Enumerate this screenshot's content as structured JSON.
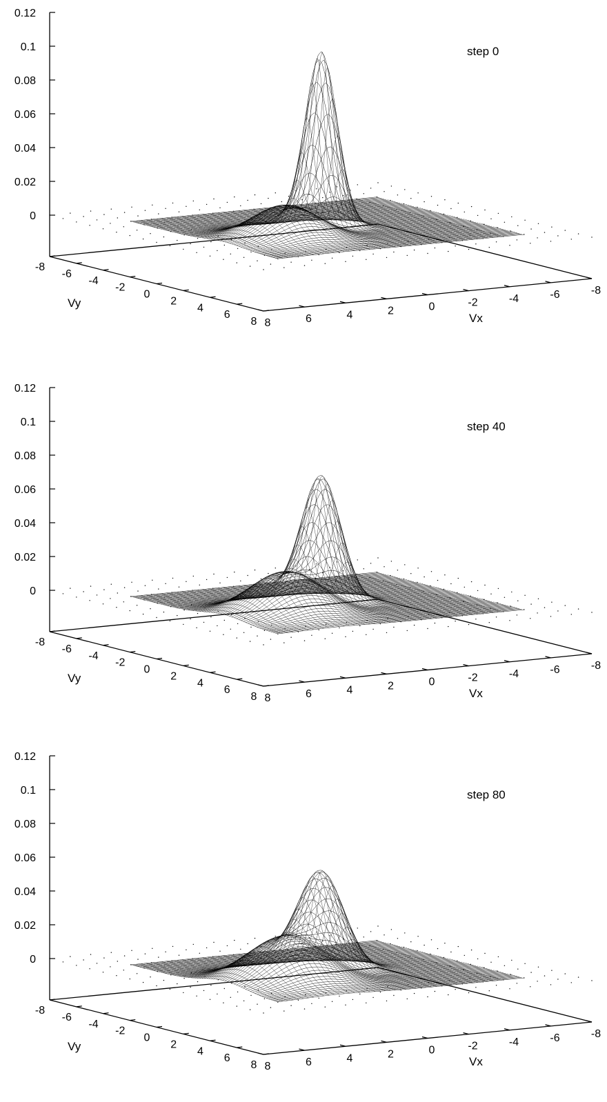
{
  "chart_data": [
    {
      "type": "surface",
      "label": "step 0",
      "xlabel": "Vx",
      "ylabel": "Vy",
      "zlim": [
        0,
        0.12
      ],
      "xlim": [
        -8,
        8
      ],
      "ylim": [
        -8,
        8
      ],
      "z_ticks": [
        "0",
        "0.02",
        "0.04",
        "0.06",
        "0.08",
        "0.1",
        "0.12"
      ],
      "vx_ticks": [
        "8",
        "6",
        "4",
        "2",
        "0",
        "-2",
        "-4",
        "-6",
        "-8"
      ],
      "vy_ticks": [
        "-8",
        "-6",
        "-4",
        "-2",
        "0",
        "2",
        "4",
        "6",
        "8"
      ],
      "main_peak": {
        "vx": 0.3,
        "vy": 0.5,
        "height": 0.103,
        "sigma_vx": 0.7,
        "sigma_vy": 0.55
      },
      "secondary_bump": {
        "vx": 3.0,
        "vy": 2.0,
        "height": 0.02,
        "sigma": 1.4
      }
    },
    {
      "type": "surface",
      "label": "step 40",
      "xlabel": "Vx",
      "ylabel": "Vy",
      "zlim": [
        0,
        0.12
      ],
      "xlim": [
        -8,
        8
      ],
      "ylim": [
        -8,
        8
      ],
      "z_ticks": [
        "0",
        "0.02",
        "0.04",
        "0.06",
        "0.08",
        "0.1",
        "0.12"
      ],
      "vx_ticks": [
        "8",
        "6",
        "4",
        "2",
        "0",
        "-2",
        "-4",
        "-6",
        "-8"
      ],
      "vy_ticks": [
        "-8",
        "-6",
        "-4",
        "-2",
        "0",
        "2",
        "4",
        "6",
        "8"
      ],
      "main_peak": {
        "vx": 0.3,
        "vy": 0.5,
        "height": 0.073,
        "sigma_vx": 0.85,
        "sigma_vy": 0.7
      },
      "secondary_bump": {
        "vx": 3.0,
        "vy": 2.0,
        "height": 0.025,
        "sigma": 1.5
      }
    },
    {
      "type": "surface",
      "label": "step 80",
      "xlabel": "Vx",
      "ylabel": "Vy",
      "zlim": [
        0,
        0.12
      ],
      "xlim": [
        -8,
        8
      ],
      "ylim": [
        -8,
        8
      ],
      "z_ticks": [
        "0",
        "0.02",
        "0.04",
        "0.06",
        "0.08",
        "0.1",
        "0.12"
      ],
      "vx_ticks": [
        "8",
        "6",
        "4",
        "2",
        "0",
        "-2",
        "-4",
        "-6",
        "-8"
      ],
      "vy_ticks": [
        "-8",
        "-6",
        "-4",
        "-2",
        "0",
        "2",
        "4",
        "6",
        "8"
      ],
      "main_peak": {
        "vx": 0.3,
        "vy": 0.5,
        "height": 0.056,
        "sigma_vx": 1.0,
        "sigma_vy": 0.8
      },
      "secondary_bump": {
        "vx": 3.0,
        "vy": 2.0,
        "height": 0.027,
        "sigma": 1.6
      }
    }
  ],
  "colors": {
    "ink": "#000000",
    "background": "#ffffff"
  }
}
